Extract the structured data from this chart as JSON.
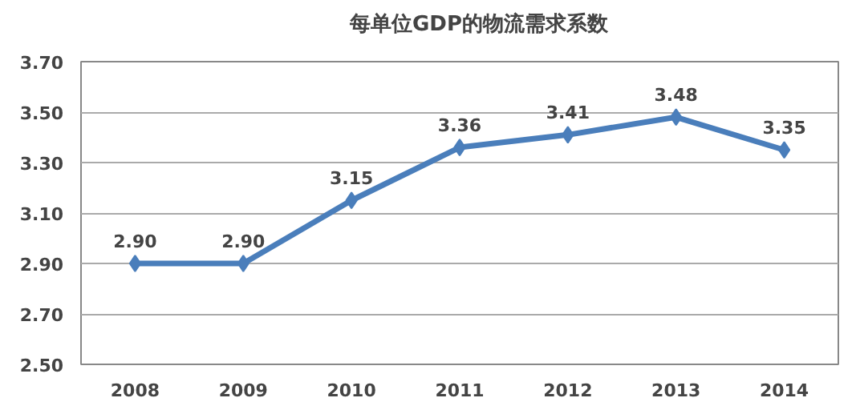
{
  "chart_data": {
    "type": "line",
    "categories": [
      "2008",
      "2009",
      "2010",
      "2011",
      "2012",
      "2013",
      "2014"
    ],
    "series": [
      {
        "name": "每单位GDP的物流需求系数",
        "color": "#4a7ebb",
        "values": [
          2.9,
          2.9,
          3.15,
          3.36,
          3.41,
          3.48,
          3.35
        ],
        "value_labels": [
          "2.90",
          "2.90",
          "3.15",
          "3.36",
          "3.41",
          "3.48",
          "3.35"
        ]
      }
    ],
    "ylim": [
      2.5,
      3.7
    ],
    "yticks": [
      "2.50",
      "2.70",
      "2.90",
      "3.10",
      "3.30",
      "3.50",
      "3.70"
    ],
    "grid": "y",
    "legend": "top",
    "marker": "diamond",
    "line_style": "solid"
  }
}
